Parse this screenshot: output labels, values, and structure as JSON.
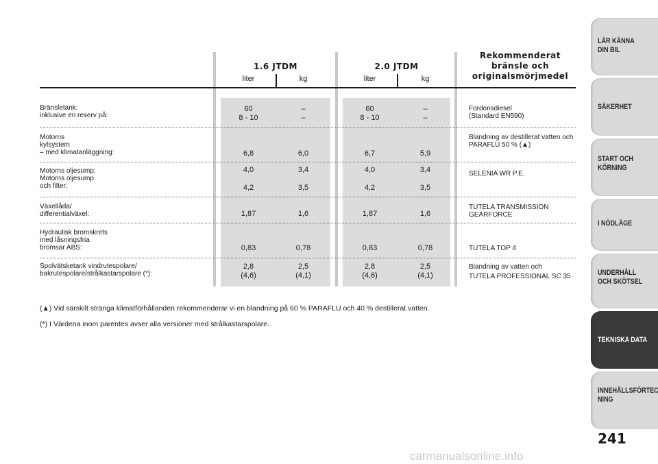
{
  "header": {
    "col1_title": "1.6 JTDM",
    "col2_title": "2.0 JTDM",
    "col3_title": "Rekommenderat\nbränsle och\noriginalsmörjmedel",
    "liter": "liter",
    "kg": "kg"
  },
  "rows": [
    {
      "label": "Bränsletank:\ninklusive en reserv på:",
      "c1": "60\n8 - 10",
      "c2": "–\n–",
      "c3": "60\n8 - 10",
      "c4": "–\n–",
      "fuel": "Fordonsdiesel\n(Standard EN590)"
    },
    {
      "label": "Motorns\nkylsystem\n– med klimatanläggning:",
      "c1": "6,8",
      "c2": "6,0",
      "c3": "6,7",
      "c4": "5,9",
      "fuel": "Blandning av destillerat vatten och\nPARAFLU 50 % (▲)"
    },
    {
      "label": "Motorns oljesump:\nMotorns oljesump\noch filter:",
      "c1": "4,0\n\n4,2",
      "c2": "3,4\n\n3,5",
      "c3": "4,0\n\n4,2",
      "c4": "3,4\n\n3,5",
      "fuel": "SELENIA WR P.E."
    },
    {
      "label": "Växellåda/\ndifferentialväxel:",
      "c1": "1,87",
      "c2": "1,6",
      "c3": "1,87",
      "c4": "1,6",
      "fuel": "TUTELA TRANSMISSION\nGEARFORCE"
    },
    {
      "label": "Hydraulisk bromskrets\nmed låsningsfria\nbromsar ABS:",
      "c1": "0,83",
      "c2": "0,78",
      "c3": "0,83",
      "c4": "0,78",
      "fuel": "TUTELA TOP 4"
    },
    {
      "label": "Spolvätsketank vindrutespolare/\nbakrutespolare/strålkastarspolare (*):",
      "c1": "2,8\n(4,6)",
      "c2": "2,5\n(4,1)",
      "c3": "2,8\n(4,6)",
      "c4": "2,5\n(4,1)",
      "fuel": "Blandning av vatten och\nTUTELA PROFESSIONAL SC 35"
    }
  ],
  "notes": {
    "note1": "(▲) Vid särskilt stränga klimatförhållanden rekommenderar vi en blandning på 60 % PARAFLU och 40 % destillerat vatten.",
    "note2": "(*) I Värdena inom parentes avser alla versioner med strålkastarspolare."
  },
  "tabs": [
    {
      "label": "LÄR KÄNNA\nDIN BIL"
    },
    {
      "label": "SÄKERHET"
    },
    {
      "label": "START OCH\nKÖRNING"
    },
    {
      "label": "I NÖDLÄGE"
    },
    {
      "label": "UNDERHÅLL\nOCH SKÖTSEL"
    },
    {
      "label": "TEKNISKA DATA"
    },
    {
      "label": "INNEHÅLLSFÖRTECK-\nNING"
    }
  ],
  "page_number": "241",
  "watermark": "carmanualsonline.info"
}
